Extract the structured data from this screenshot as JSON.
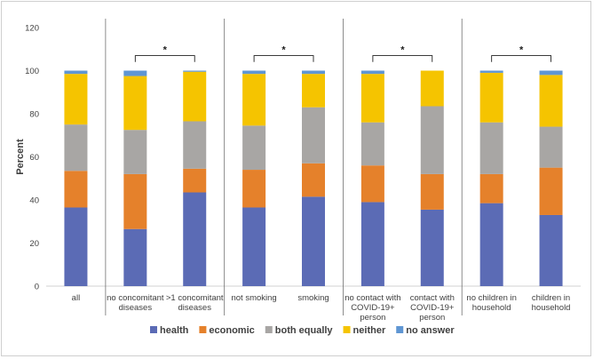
{
  "chart_data": {
    "type": "bar",
    "stacked": true,
    "ylabel": "Percent",
    "xlabel": "",
    "ylim": [
      0,
      120
    ],
    "yticks": [
      0,
      20,
      40,
      60,
      80,
      100,
      120
    ],
    "categories": [
      [
        "all"
      ],
      [
        "no concomitant",
        "diseases"
      ],
      [
        ">1 concomitant",
        "diseases"
      ],
      [
        "not smoking"
      ],
      [
        "smoking"
      ],
      [
        "no contact with",
        "COVID-19+",
        "person"
      ],
      [
        "contact with",
        "COVID-19+",
        "person"
      ],
      [
        "no children in",
        "household"
      ],
      [
        "children in",
        "household"
      ]
    ],
    "groups": [
      [
        0
      ],
      [
        1,
        2
      ],
      [
        3,
        4
      ],
      [
        5,
        6
      ],
      [
        7,
        8
      ]
    ],
    "significance": [
      {
        "between": [
          1,
          2
        ],
        "label": "*"
      },
      {
        "between": [
          3,
          4
        ],
        "label": "*"
      },
      {
        "between": [
          5,
          6
        ],
        "label": "*"
      },
      {
        "between": [
          7,
          8
        ],
        "label": "*"
      }
    ],
    "series": [
      {
        "name": "health",
        "color": "#5b6bb5",
        "values": [
          36.5,
          26.5,
          43.5,
          36.5,
          41.5,
          39,
          35.5,
          38.5,
          33
        ]
      },
      {
        "name": "economic",
        "color": "#e5812b",
        "values": [
          17,
          25.5,
          11,
          17.5,
          15.5,
          17,
          16.5,
          13.5,
          22
        ]
      },
      {
        "name": "both equally",
        "color": "#a8a6a4",
        "values": [
          21.5,
          20.5,
          22,
          20.5,
          26,
          20,
          31.5,
          24,
          19
        ]
      },
      {
        "name": "neither",
        "color": "#f5c400",
        "values": [
          23.5,
          25,
          23,
          24,
          15.5,
          22.5,
          16.5,
          23,
          24
        ]
      },
      {
        "name": "no answer",
        "color": "#5f96d3",
        "values": [
          1.5,
          2.5,
          0.5,
          1.5,
          1.5,
          1.5,
          0,
          1,
          2
        ]
      }
    ],
    "legend_position": "bottom"
  }
}
